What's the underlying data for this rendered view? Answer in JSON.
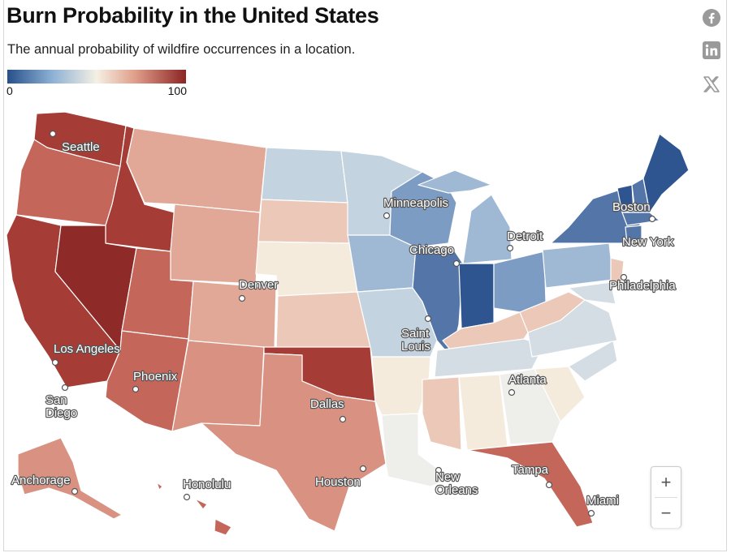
{
  "header": {
    "title": "Burn Probability in the United States",
    "subtitle": "The annual probability of wildfire occurrences in a location."
  },
  "legend": {
    "min_label": "0",
    "max_label": "100",
    "colors": [
      "#27508a",
      "#8cb0d4",
      "#f5f0e4",
      "#df9c88",
      "#8c2424"
    ]
  },
  "share": [
    {
      "name": "facebook-icon"
    },
    {
      "name": "linkedin-icon"
    },
    {
      "name": "x-icon"
    }
  ],
  "zoom": {
    "in_label": "+",
    "out_label": "−"
  },
  "palette": {
    "darkest_red": "#8e2a27",
    "dark_red": "#a63c36",
    "medium_red": "#c4665a",
    "light_red": "#d99181",
    "salmon": "#e1a898",
    "pale_salmon": "#ebc8b8",
    "beige": "#f4ebdd",
    "off_white": "#eeeeea",
    "grey_blue": "#d4dde4",
    "light_blue": "#c3d3e0",
    "blue": "#9fb9d5",
    "mid_blue": "#7c9cc4",
    "dark_blue": "#5475a8",
    "darkest_blue": "#2e5590"
  },
  "cities": [
    {
      "name": "Seattle"
    },
    {
      "name": "Minneapolis"
    },
    {
      "name": "Boston"
    },
    {
      "name": "Detroit"
    },
    {
      "name": "Chicago"
    },
    {
      "name": "New York"
    },
    {
      "name": "Denver"
    },
    {
      "name": "Philadelphia"
    },
    {
      "name": "Saint Louis"
    },
    {
      "name": "Los Angeles"
    },
    {
      "name": "Atlanta"
    },
    {
      "name": "Phoenix"
    },
    {
      "name": "San Diego"
    },
    {
      "name": "Dallas"
    },
    {
      "name": "Houston"
    },
    {
      "name": "New Orleans"
    },
    {
      "name": "Tampa"
    },
    {
      "name": "Anchorage"
    },
    {
      "name": "Honolulu"
    },
    {
      "name": "Miami"
    }
  ]
}
